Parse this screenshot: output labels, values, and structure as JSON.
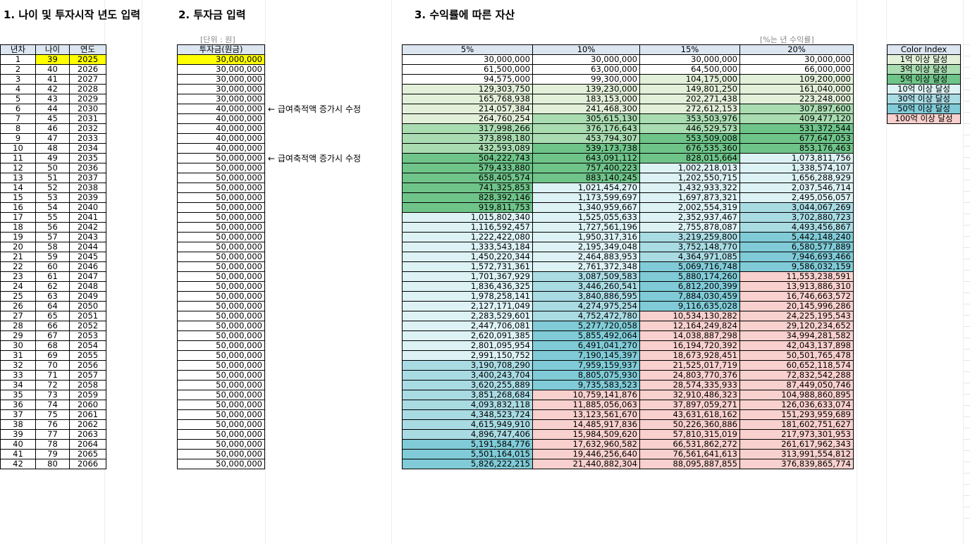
{
  "titles": {
    "t1": "1. 나이 및 투자시작 년도 입력",
    "t2": "2. 투자금 입력",
    "t3": "3. 수익률에 따른 자산"
  },
  "notes": {
    "unit": "[단위 : 원]",
    "rate": "[%는 년 수익률]"
  },
  "left_table": {
    "headers": [
      "년차",
      "나이",
      "연도"
    ],
    "rows": [
      [
        "1",
        "39",
        "2025"
      ],
      [
        "2",
        "40",
        "2026"
      ],
      [
        "3",
        "41",
        "2027"
      ],
      [
        "4",
        "42",
        "2028"
      ],
      [
        "5",
        "43",
        "2029"
      ],
      [
        "6",
        "44",
        "2030"
      ],
      [
        "7",
        "45",
        "2031"
      ],
      [
        "8",
        "46",
        "2032"
      ],
      [
        "9",
        "47",
        "2033"
      ],
      [
        "10",
        "48",
        "2034"
      ],
      [
        "11",
        "49",
        "2035"
      ],
      [
        "12",
        "50",
        "2036"
      ],
      [
        "13",
        "51",
        "2037"
      ],
      [
        "14",
        "52",
        "2038"
      ],
      [
        "15",
        "53",
        "2039"
      ],
      [
        "16",
        "54",
        "2040"
      ],
      [
        "17",
        "55",
        "2041"
      ],
      [
        "18",
        "56",
        "2042"
      ],
      [
        "19",
        "57",
        "2043"
      ],
      [
        "20",
        "58",
        "2044"
      ],
      [
        "21",
        "59",
        "2045"
      ],
      [
        "22",
        "60",
        "2046"
      ],
      [
        "23",
        "61",
        "2047"
      ],
      [
        "24",
        "62",
        "2048"
      ],
      [
        "25",
        "63",
        "2049"
      ],
      [
        "26",
        "64",
        "2050"
      ],
      [
        "27",
        "65",
        "2051"
      ],
      [
        "28",
        "66",
        "2052"
      ],
      [
        "29",
        "67",
        "2053"
      ],
      [
        "30",
        "68",
        "2054"
      ],
      [
        "31",
        "69",
        "2055"
      ],
      [
        "32",
        "70",
        "2056"
      ],
      [
        "33",
        "71",
        "2057"
      ],
      [
        "34",
        "72",
        "2058"
      ],
      [
        "35",
        "73",
        "2059"
      ],
      [
        "36",
        "74",
        "2060"
      ],
      [
        "37",
        "75",
        "2061"
      ],
      [
        "38",
        "76",
        "2062"
      ],
      [
        "39",
        "77",
        "2063"
      ],
      [
        "40",
        "78",
        "2064"
      ],
      [
        "41",
        "79",
        "2065"
      ],
      [
        "42",
        "80",
        "2066"
      ]
    ]
  },
  "invest_table": {
    "header": "투자금(원금)",
    "rows": [
      "30,000,000",
      "30,000,000",
      "30,000,000",
      "30,000,000",
      "30,000,000",
      "40,000,000",
      "40,000,000",
      "40,000,000",
      "40,000,000",
      "40,000,000",
      "50,000,000",
      "50,000,000",
      "50,000,000",
      "50,000,000",
      "50,000,000",
      "50,000,000",
      "50,000,000",
      "50,000,000",
      "50,000,000",
      "50,000,000",
      "50,000,000",
      "50,000,000",
      "50,000,000",
      "50,000,000",
      "50,000,000",
      "50,000,000",
      "50,000,000",
      "50,000,000",
      "50,000,000",
      "50,000,000",
      "50,000,000",
      "50,000,000",
      "50,000,000",
      "50,000,000",
      "50,000,000",
      "50,000,000",
      "50,000,000",
      "50,000,000",
      "50,000,000",
      "50,000,000",
      "50,000,000",
      "50,000,000"
    ]
  },
  "annotations": [
    {
      "row": 5,
      "text": "← 급여축적액 증가시 수정"
    },
    {
      "row": 10,
      "text": "← 급여축적액 증가시 수정"
    }
  ],
  "asset_table": {
    "headers": [
      "5%",
      "10%",
      "15%",
      "20%"
    ],
    "rows": [
      [
        "30,000,000",
        "30,000,000",
        "30,000,000",
        "30,000,000"
      ],
      [
        "61,500,000",
        "63,000,000",
        "64,500,000",
        "66,000,000"
      ],
      [
        "94,575,000",
        "99,300,000",
        "104,175,000",
        "109,200,000"
      ],
      [
        "129,303,750",
        "139,230,000",
        "149,801,250",
        "161,040,000"
      ],
      [
        "165,768,938",
        "183,153,000",
        "202,271,438",
        "223,248,000"
      ],
      [
        "214,057,384",
        "241,468,300",
        "272,612,153",
        "307,897,600"
      ],
      [
        "264,760,254",
        "305,615,130",
        "353,503,976",
        "409,477,120"
      ],
      [
        "317,998,266",
        "376,176,643",
        "446,529,573",
        "531,372,544"
      ],
      [
        "373,898,180",
        "453,794,307",
        "553,509,008",
        "677,647,053"
      ],
      [
        "432,593,089",
        "539,173,738",
        "676,535,360",
        "853,176,463"
      ],
      [
        "504,222,743",
        "643,091,112",
        "828,015,664",
        "1,073,811,756"
      ],
      [
        "579,433,880",
        "757,400,223",
        "1,002,218,013",
        "1,338,574,107"
      ],
      [
        "658,405,574",
        "883,140,245",
        "1,202,550,715",
        "1,656,288,929"
      ],
      [
        "741,325,853",
        "1,021,454,270",
        "1,432,933,322",
        "2,037,546,714"
      ],
      [
        "828,392,146",
        "1,173,599,697",
        "1,697,873,321",
        "2,495,056,057"
      ],
      [
        "919,811,753",
        "1,340,959,667",
        "2,002,554,319",
        "3,044,067,269"
      ],
      [
        "1,015,802,340",
        "1,525,055,633",
        "2,352,937,467",
        "3,702,880,723"
      ],
      [
        "1,116,592,457",
        "1,727,561,196",
        "2,755,878,087",
        "4,493,456,867"
      ],
      [
        "1,222,422,080",
        "1,950,317,316",
        "3,219,259,800",
        "5,442,148,240"
      ],
      [
        "1,333,543,184",
        "2,195,349,048",
        "3,752,148,770",
        "6,580,577,889"
      ],
      [
        "1,450,220,344",
        "2,464,883,953",
        "4,364,971,085",
        "7,946,693,466"
      ],
      [
        "1,572,731,361",
        "2,761,372,348",
        "5,069,716,748",
        "9,586,032,159"
      ],
      [
        "1,701,367,929",
        "3,087,509,583",
        "5,880,174,260",
        "11,553,238,591"
      ],
      [
        "1,836,436,325",
        "3,446,260,541",
        "6,812,200,399",
        "13,913,886,310"
      ],
      [
        "1,978,258,141",
        "3,840,886,595",
        "7,884,030,459",
        "16,746,663,572"
      ],
      [
        "2,127,171,049",
        "4,274,975,254",
        "9,116,635,028",
        "20,145,996,286"
      ],
      [
        "2,283,529,601",
        "4,752,472,780",
        "10,534,130,282",
        "24,225,195,543"
      ],
      [
        "2,447,706,081",
        "5,277,720,058",
        "12,164,249,824",
        "29,120,234,652"
      ],
      [
        "2,620,091,385",
        "5,855,492,064",
        "14,038,887,298",
        "34,994,281,582"
      ],
      [
        "2,801,095,954",
        "6,491,041,270",
        "16,194,720,392",
        "42,043,137,898"
      ],
      [
        "2,991,150,752",
        "7,190,145,397",
        "18,673,928,451",
        "50,501,765,478"
      ],
      [
        "3,190,708,290",
        "7,959,159,937",
        "21,525,017,719",
        "60,652,118,574"
      ],
      [
        "3,400,243,704",
        "8,805,075,930",
        "24,803,770,376",
        "72,832,542,288"
      ],
      [
        "3,620,255,889",
        "9,735,583,523",
        "28,574,335,933",
        "87,449,050,746"
      ],
      [
        "3,851,268,684",
        "10,759,141,876",
        "32,910,486,323",
        "104,988,860,895"
      ],
      [
        "4,093,832,118",
        "11,885,056,063",
        "37,897,059,271",
        "126,036,633,074"
      ],
      [
        "4,348,523,724",
        "13,123,561,670",
        "43,631,618,162",
        "151,293,959,689"
      ],
      [
        "4,615,949,910",
        "14,485,917,836",
        "50,226,360,886",
        "181,602,751,627"
      ],
      [
        "4,896,747,406",
        "15,984,509,620",
        "57,810,315,019",
        "217,973,301,953"
      ],
      [
        "5,191,584,776",
        "17,632,960,582",
        "66,531,862,272",
        "261,617,962,343"
      ],
      [
        "5,501,164,015",
        "19,446,256,640",
        "76,561,641,613",
        "313,991,554,812"
      ],
      [
        "5,826,222,215",
        "21,440,882,304",
        "88,095,887,855",
        "376,839,865,774"
      ]
    ]
  },
  "color_index": {
    "header": "Color Index",
    "items": [
      {
        "label": "1억 이상 달성",
        "color": "#e2f0d9"
      },
      {
        "label": "3억 이상 달성",
        "color": "#a9dcb1"
      },
      {
        "label": "5억 이상 달성",
        "color": "#6fc489"
      },
      {
        "label": "10억 이상 달성",
        "color": "#ddf2f4"
      },
      {
        "label": "30억 이상 달성",
        "color": "#a9dbe3"
      },
      {
        "label": "50억 이상 달성",
        "color": "#80cbd7"
      },
      {
        "label": "100억 이상 달성",
        "color": "#f8d0cd"
      }
    ]
  },
  "colors": {
    "header_bg": "#dce6f1",
    "highlight_input": "#ffff00"
  }
}
